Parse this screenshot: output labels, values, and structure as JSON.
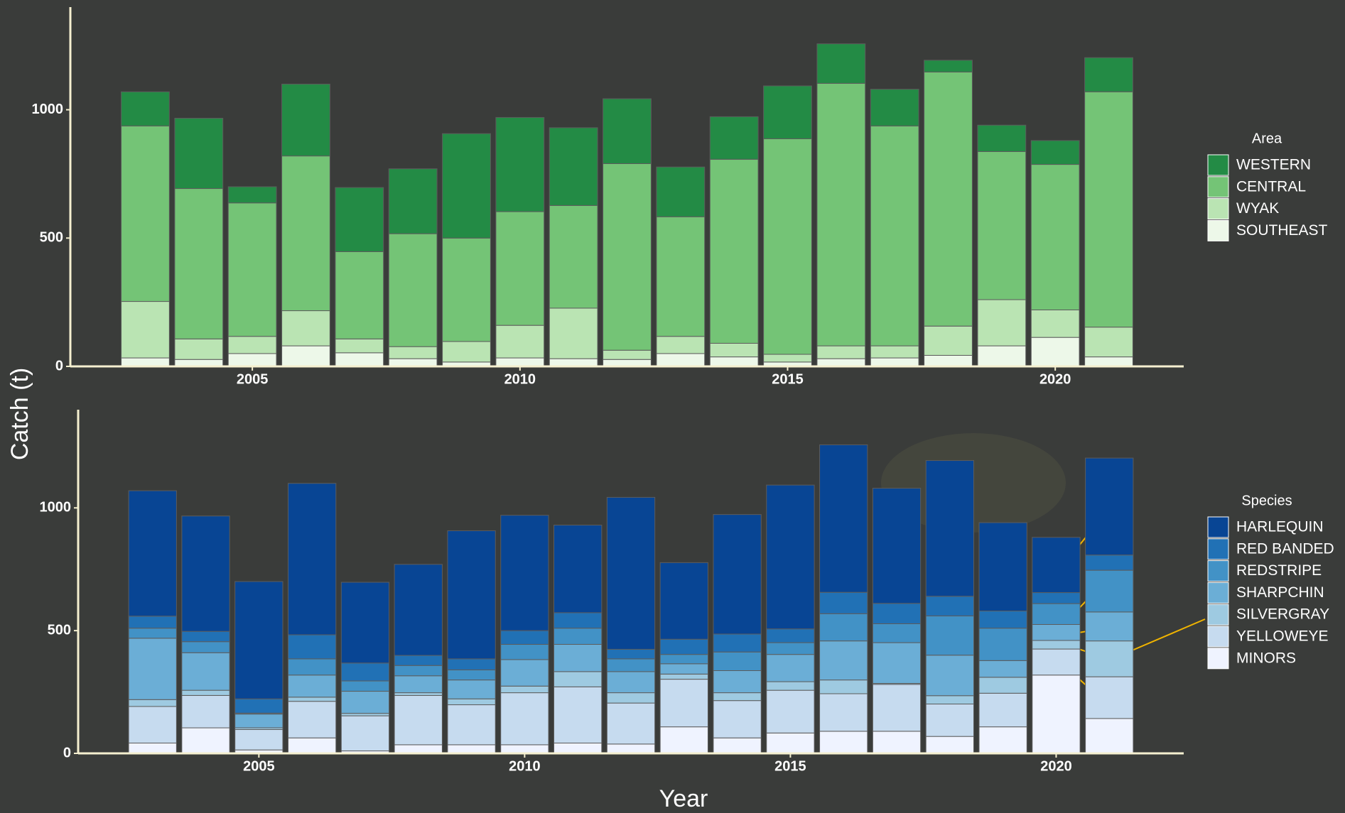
{
  "chart_data": [
    {
      "type": "bar",
      "stacked": true,
      "legend_title": "Area",
      "y_label": "Catch (t)",
      "x": [
        2003,
        2004,
        2005,
        2006,
        2007,
        2008,
        2009,
        2010,
        2011,
        2012,
        2013,
        2014,
        2015,
        2016,
        2017,
        2018,
        2019,
        2020,
        2021
      ],
      "series": [
        {
          "name": "WESTERN",
          "color": "#238b45",
          "values": [
            133,
            274,
            63,
            280,
            250,
            253,
            407,
            367,
            303,
            253,
            194,
            166,
            206,
            154,
            143,
            46,
            103,
            93,
            133
          ]
        },
        {
          "name": "CENTRAL",
          "color": "#74c476",
          "values": [
            684,
            586,
            520,
            603,
            340,
            440,
            403,
            443,
            400,
            727,
            466,
            717,
            840,
            1023,
            857,
            990,
            577,
            567,
            917
          ]
        },
        {
          "name": "WYAK",
          "color": "#bae4b3",
          "values": [
            220,
            80,
            67,
            137,
            54,
            47,
            80,
            127,
            197,
            36,
            67,
            53,
            30,
            50,
            47,
            114,
            180,
            107,
            116
          ]
        },
        {
          "name": "SOUTHEAST",
          "color": "#edf8e9",
          "values": [
            33,
            27,
            50,
            80,
            53,
            30,
            17,
            33,
            30,
            27,
            50,
            37,
            17,
            30,
            33,
            43,
            80,
            113,
            37
          ]
        }
      ],
      "xlim": [
        2001.6,
        2022.4
      ],
      "xticks": [
        2005,
        2010,
        2015,
        2020
      ],
      "ylim": [
        0,
        1400
      ],
      "yticks": [
        0,
        500,
        1000
      ]
    },
    {
      "type": "bar",
      "stacked": true,
      "legend_title": "Species",
      "x_label": "Year",
      "x": [
        2003,
        2004,
        2005,
        2006,
        2007,
        2008,
        2009,
        2010,
        2011,
        2012,
        2013,
        2014,
        2015,
        2016,
        2017,
        2018,
        2019,
        2020,
        2021
      ],
      "series": [
        {
          "name": "HARLEQUIN",
          "color": "#084594",
          "values": [
            511,
            470,
            478,
            617,
            329,
            371,
            522,
            470,
            357,
            619,
            312,
            487,
            586,
            601,
            469,
            553,
            360,
            225,
            395
          ]
        },
        {
          "name": "RED BANDED",
          "color": "#2171b5",
          "values": [
            49,
            42,
            58,
            98,
            73,
            41,
            45,
            56,
            63,
            39,
            62,
            73,
            56,
            87,
            83,
            80,
            70,
            45,
            62
          ]
        },
        {
          "name": "REDSTRIPE",
          "color": "#4292c6",
          "values": [
            41,
            45,
            4,
            66,
            42,
            42,
            41,
            62,
            66,
            52,
            38,
            76,
            48,
            111,
            77,
            160,
            132,
            85,
            170
          ]
        },
        {
          "name": "SHARPCHIN",
          "color": "#6baed6",
          "values": [
            250,
            153,
            56,
            90,
            90,
            69,
            77,
            108,
            111,
            86,
            42,
            90,
            111,
            159,
            166,
            165,
            68,
            65,
            118
          ]
        },
        {
          "name": "SILVERGRAY",
          "color": "#9ecae1",
          "values": [
            28,
            21,
            7,
            17,
            10,
            11,
            24,
            27,
            62,
            42,
            21,
            32,
            35,
            56,
            4,
            34,
            65,
            35,
            146
          ]
        },
        {
          "name": "YELLOWEYE",
          "color": "#c6dbef",
          "values": [
            149,
            132,
            83,
            149,
            143,
            201,
            163,
            212,
            229,
            167,
            194,
            152,
            174,
            153,
            191,
            132,
            137,
            106,
            170
          ]
        },
        {
          "name": "MINORS",
          "color": "#eff3ff",
          "values": [
            42,
            104,
            14,
            63,
            10,
            35,
            35,
            35,
            42,
            38,
            108,
            63,
            83,
            90,
            90,
            69,
            108,
            319,
            142
          ]
        }
      ],
      "xlim": [
        2001.6,
        2022.4
      ],
      "xticks": [
        2005,
        2010,
        2015,
        2020
      ],
      "ylim": [
        0,
        1400
      ],
      "yticks": [
        0,
        500,
        1000
      ]
    }
  ]
}
